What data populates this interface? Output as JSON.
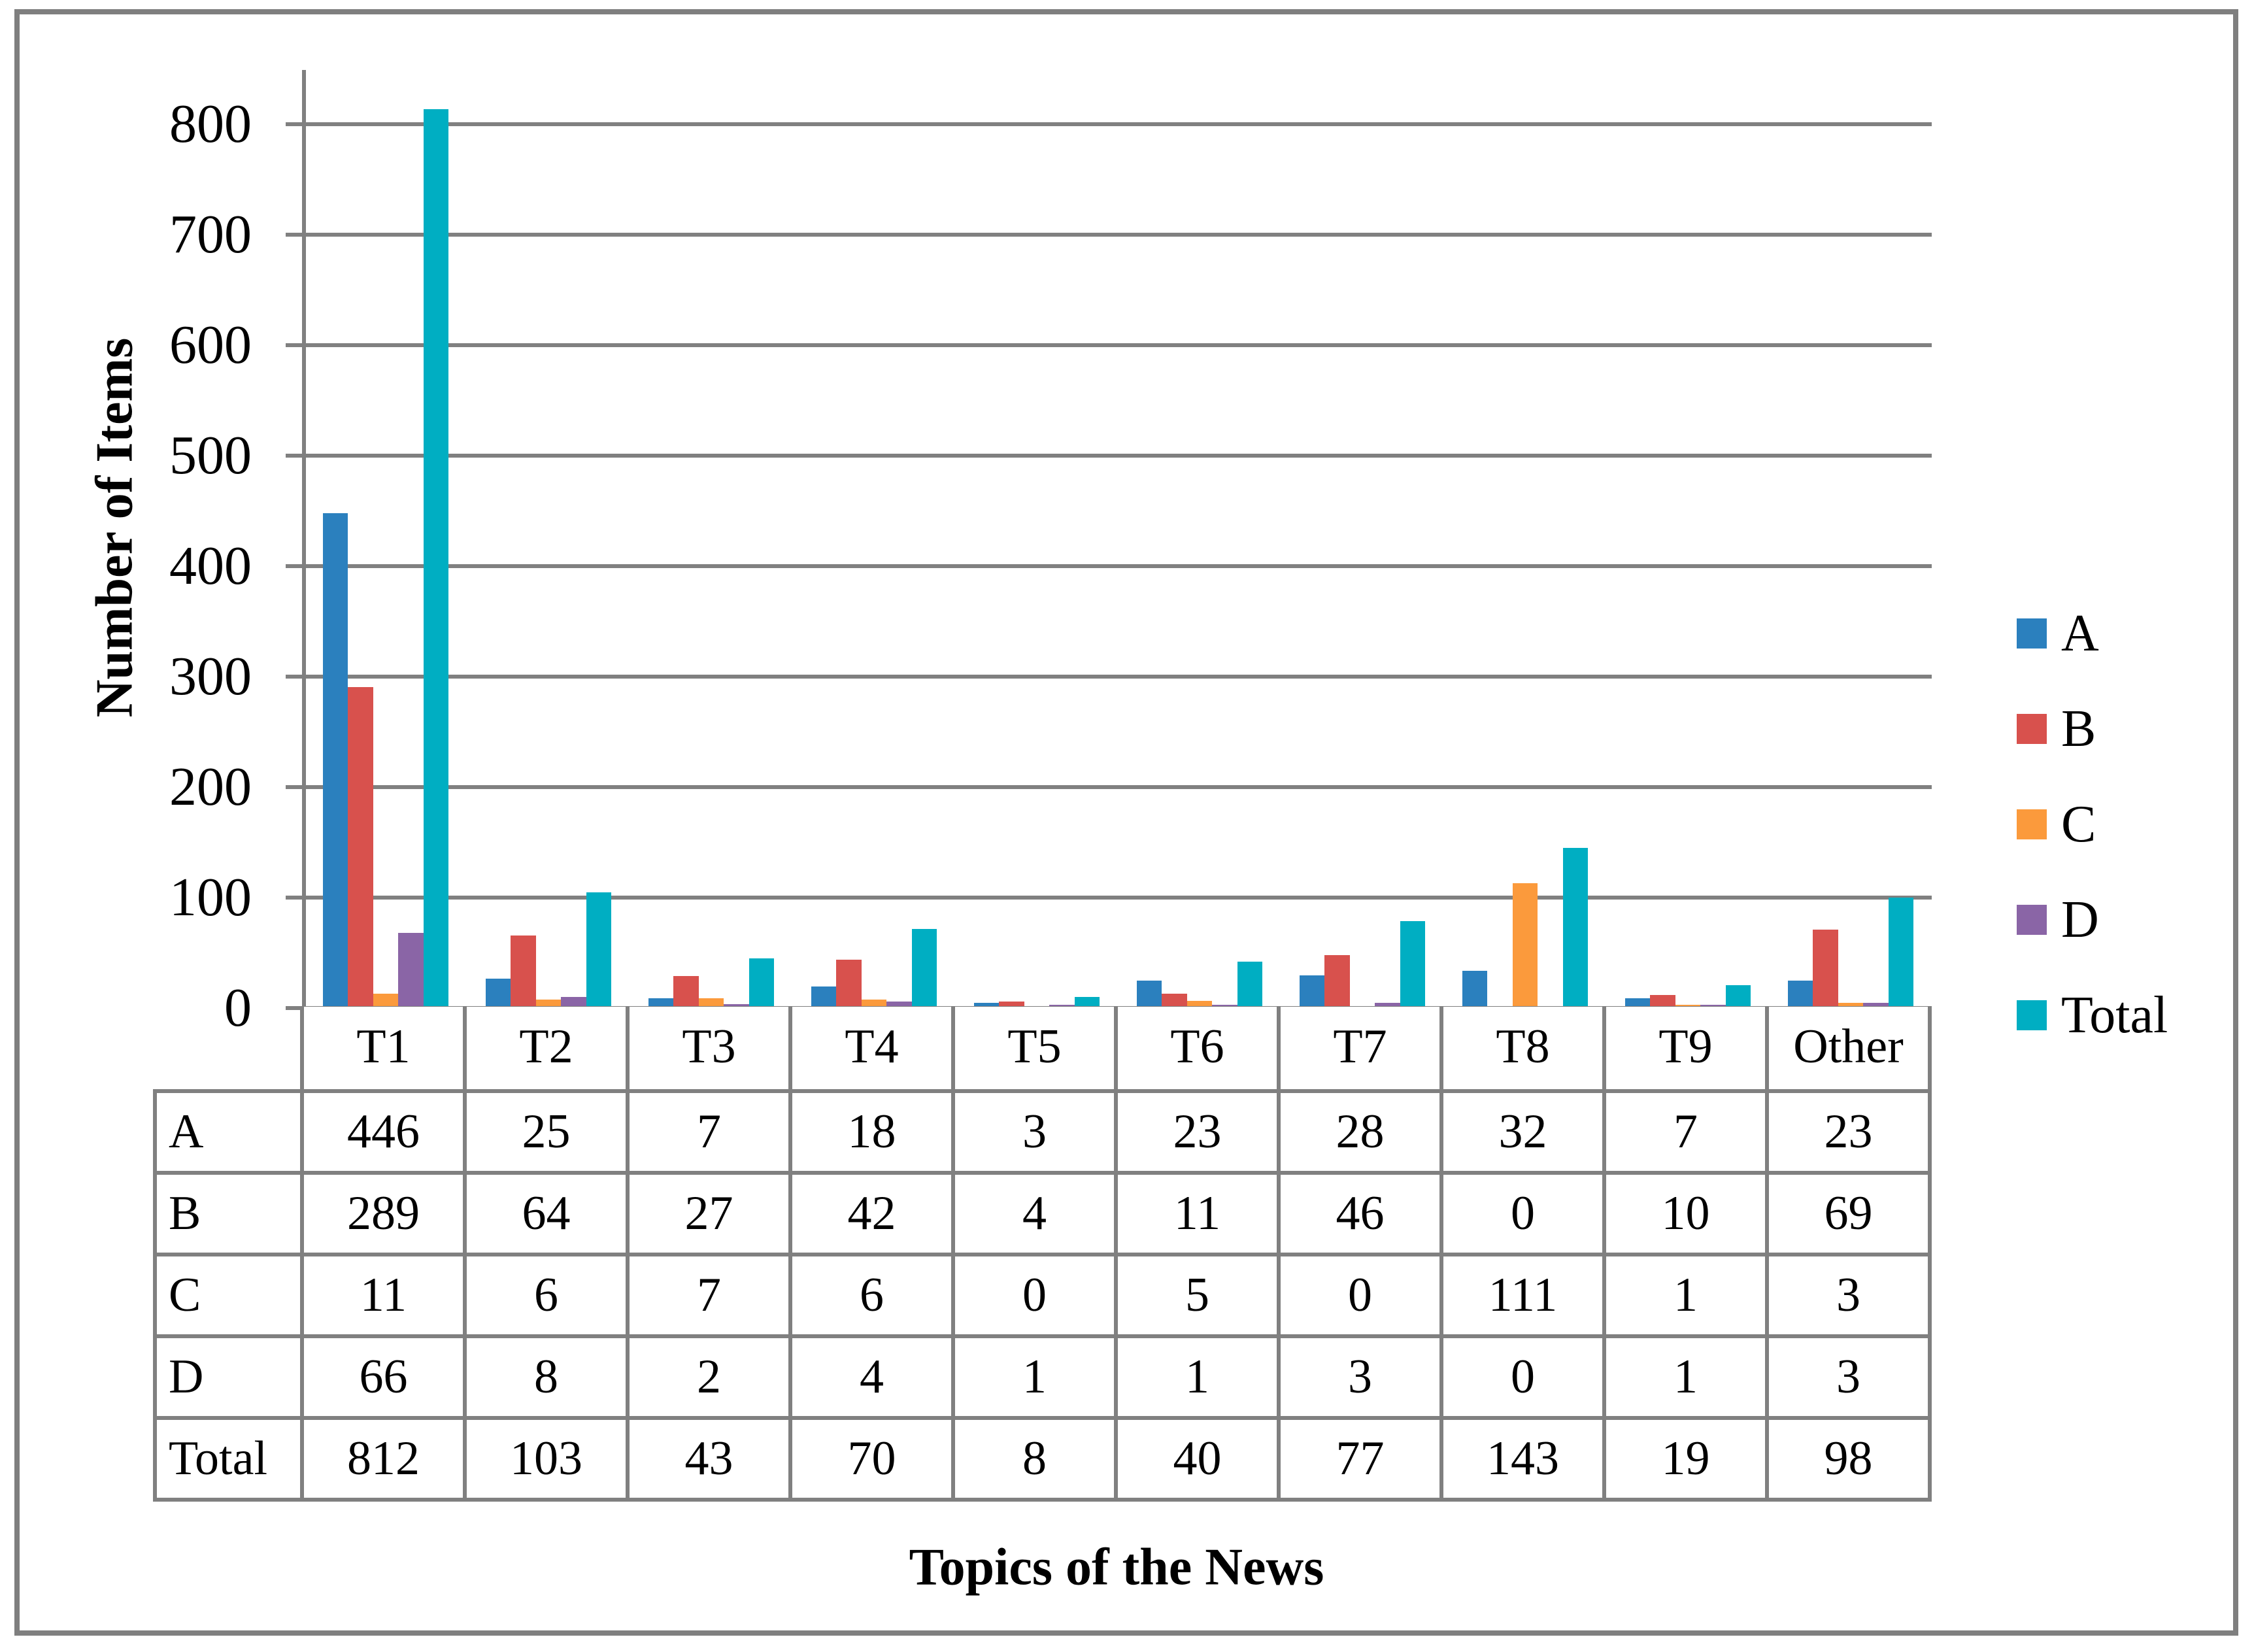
{
  "figure": {
    "background": "#ffffff",
    "border_color": "#7f7f7f",
    "gridline_color": "#808080"
  },
  "chart_data": {
    "type": "bar",
    "title": "",
    "xlabel": "Topics of the News",
    "ylabel": "Number of Items",
    "categories": [
      "T1",
      "T2",
      "T3",
      "T4",
      "T5",
      "T6",
      "T7",
      "T8",
      "T9",
      "Other"
    ],
    "series": [
      {
        "name": "A",
        "color": "#2B80BE",
        "values": [
          446,
          25,
          7,
          18,
          3,
          23,
          28,
          32,
          7,
          23
        ]
      },
      {
        "name": "B",
        "color": "#D8514D",
        "values": [
          289,
          64,
          27,
          42,
          4,
          11,
          46,
          0,
          10,
          69
        ]
      },
      {
        "name": "C",
        "color": "#FB9A3C",
        "values": [
          11,
          6,
          7,
          6,
          0,
          5,
          0,
          111,
          1,
          3
        ]
      },
      {
        "name": "D",
        "color": "#8A65A6",
        "values": [
          66,
          8,
          2,
          4,
          1,
          1,
          3,
          0,
          1,
          3
        ]
      },
      {
        "name": "Total",
        "color": "#00AEC2",
        "values": [
          812,
          103,
          43,
          70,
          8,
          40,
          77,
          143,
          19,
          98
        ]
      }
    ],
    "ylim": [
      0,
      800
    ],
    "yticks": [
      0,
      100,
      200,
      300,
      400,
      500,
      600,
      700,
      800
    ],
    "grid": "horizontal",
    "legend_position": "right",
    "legend_labels": [
      "A",
      "B",
      "C",
      "D",
      "Total"
    ],
    "data_table": true
  }
}
